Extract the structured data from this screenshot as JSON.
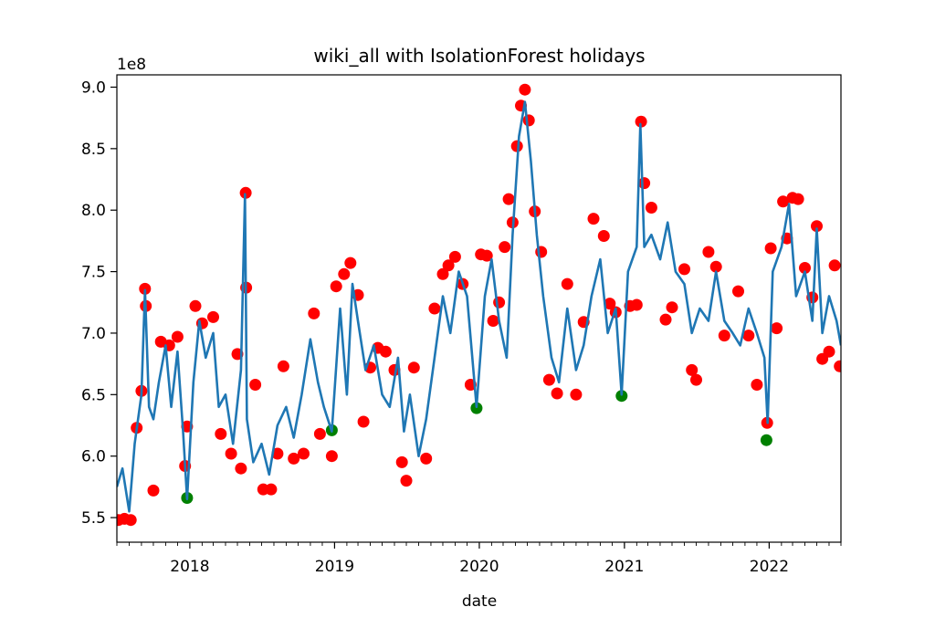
{
  "chart_data": {
    "type": "line",
    "title": "wiki_all with IsolationForest holidays",
    "xlabel": "date",
    "ylabel": "",
    "y_offset_label": "1e8",
    "xlim": [
      "2017-07-01",
      "2022-07-01"
    ],
    "ylim": [
      5.3,
      9.1
    ],
    "x_ticks": [
      {
        "date": "2018-01-01",
        "label": "2018"
      },
      {
        "date": "2019-01-01",
        "label": "2019"
      },
      {
        "date": "2020-01-01",
        "label": "2020"
      },
      {
        "date": "2021-01-01",
        "label": "2021"
      },
      {
        "date": "2022-01-01",
        "label": "2022"
      }
    ],
    "y_ticks": [
      {
        "value": 5.5,
        "label": "5.5"
      },
      {
        "value": 6.0,
        "label": "6.0"
      },
      {
        "value": 6.5,
        "label": "6.5"
      },
      {
        "value": 7.0,
        "label": "7.0"
      },
      {
        "value": 7.5,
        "label": "7.5"
      },
      {
        "value": 8.0,
        "label": "8.0"
      },
      {
        "value": 8.5,
        "label": "8.5"
      },
      {
        "value": 9.0,
        "label": "9.0"
      }
    ],
    "grid": false,
    "legend": "none",
    "colors": {
      "line": "#1f77b4",
      "anomaly": "#ff0000",
      "holiday": "#008000"
    },
    "series": [
      {
        "type": "line",
        "x": [
          "2017-07-01",
          "2017-07-15",
          "2017-08-01",
          "2017-08-15",
          "2017-09-01",
          "2017-09-10",
          "2017-09-20",
          "2017-10-01",
          "2017-10-15",
          "2017-11-01",
          "2017-11-15",
          "2017-12-01",
          "2017-12-15",
          "2017-12-25",
          "2018-01-10",
          "2018-01-25",
          "2018-02-10",
          "2018-03-01",
          "2018-03-15",
          "2018-04-01",
          "2018-04-20",
          "2018-05-10",
          "2018-05-20",
          "2018-05-25",
          "2018-06-10",
          "2018-07-01",
          "2018-07-20",
          "2018-08-10",
          "2018-09-01",
          "2018-09-20",
          "2018-10-10",
          "2018-11-01",
          "2018-11-20",
          "2018-12-05",
          "2018-12-25",
          "2019-01-15",
          "2019-02-01",
          "2019-02-15",
          "2019-03-01",
          "2019-03-20",
          "2019-04-10",
          "2019-05-01",
          "2019-05-20",
          "2019-06-10",
          "2019-06-25",
          "2019-07-10",
          "2019-08-01",
          "2019-08-20",
          "2019-09-10",
          "2019-10-01",
          "2019-10-20",
          "2019-11-10",
          "2019-12-01",
          "2019-12-25",
          "2020-01-15",
          "2020-02-01",
          "2020-02-20",
          "2020-03-10",
          "2020-03-25",
          "2020-04-10",
          "2020-04-25",
          "2020-05-10",
          "2020-05-25",
          "2020-06-10",
          "2020-07-01",
          "2020-07-20",
          "2020-08-10",
          "2020-09-01",
          "2020-09-20",
          "2020-10-10",
          "2020-11-01",
          "2020-11-20",
          "2020-12-10",
          "2020-12-25",
          "2021-01-10",
          "2021-02-01",
          "2021-02-10",
          "2021-02-20",
          "2021-03-10",
          "2021-04-01",
          "2021-04-20",
          "2021-05-10",
          "2021-06-01",
          "2021-06-20",
          "2021-07-10",
          "2021-08-01",
          "2021-08-20",
          "2021-09-10",
          "2021-10-01",
          "2021-10-20",
          "2021-11-10",
          "2021-12-01",
          "2021-12-20",
          "2021-12-28",
          "2022-01-10",
          "2022-02-01",
          "2022-02-20",
          "2022-03-10",
          "2022-04-01",
          "2022-04-20",
          "2022-05-01",
          "2022-05-15",
          "2022-06-01",
          "2022-06-20",
          "2022-07-01"
        ],
        "y": [
          5.75,
          5.9,
          5.55,
          6.1,
          6.5,
          7.35,
          6.4,
          6.3,
          6.6,
          6.9,
          6.4,
          6.85,
          6.2,
          5.65,
          6.6,
          7.1,
          6.8,
          7.0,
          6.4,
          6.5,
          6.1,
          6.7,
          8.13,
          6.3,
          5.95,
          6.1,
          5.85,
          6.25,
          6.4,
          6.15,
          6.5,
          6.95,
          6.6,
          6.4,
          6.2,
          7.2,
          6.5,
          7.4,
          7.1,
          6.7,
          6.9,
          6.5,
          6.4,
          6.8,
          6.2,
          6.5,
          6.0,
          6.3,
          6.8,
          7.3,
          7.0,
          7.5,
          7.3,
          6.4,
          7.3,
          7.6,
          7.1,
          6.8,
          7.8,
          8.6,
          8.88,
          8.4,
          7.8,
          7.3,
          6.8,
          6.6,
          7.2,
          6.7,
          6.9,
          7.3,
          7.6,
          7.0,
          7.2,
          6.5,
          7.5,
          7.7,
          8.7,
          7.7,
          7.8,
          7.6,
          7.9,
          7.5,
          7.4,
          7.0,
          7.2,
          7.1,
          7.5,
          7.1,
          7.0,
          6.9,
          7.2,
          7.0,
          6.8,
          6.27,
          7.5,
          7.7,
          8.05,
          7.3,
          7.5,
          7.1,
          7.85,
          7.0,
          7.3,
          7.1,
          6.9
        ]
      },
      {
        "type": "scatter",
        "name": "",
        "role": "anomaly",
        "x": [
          "2017-07-05",
          "2017-07-20",
          "2017-08-05",
          "2017-08-20",
          "2017-09-01",
          "2017-09-10",
          "2017-09-12",
          "2017-10-01",
          "2017-10-20",
          "2017-11-10",
          "2017-12-01",
          "2017-12-20",
          "2017-12-25",
          "2018-01-15",
          "2018-02-01",
          "2018-03-01",
          "2018-03-20",
          "2018-04-15",
          "2018-05-01",
          "2018-05-10",
          "2018-05-22",
          "2018-05-23",
          "2018-06-15",
          "2018-07-05",
          "2018-07-25",
          "2018-08-10",
          "2018-08-25",
          "2018-09-20",
          "2018-10-15",
          "2018-11-10",
          "2018-11-25",
          "2018-12-25",
          "2019-01-05",
          "2019-01-25",
          "2019-02-10",
          "2019-03-01",
          "2019-03-15",
          "2019-04-01",
          "2019-04-20",
          "2019-05-10",
          "2019-06-01",
          "2019-06-20",
          "2019-07-01",
          "2019-07-20",
          "2019-08-20",
          "2019-09-10",
          "2019-10-01",
          "2019-10-15",
          "2019-11-01",
          "2019-11-20",
          "2019-12-10",
          "2020-01-05",
          "2020-01-20",
          "2020-02-05",
          "2020-02-20",
          "2020-03-05",
          "2020-03-15",
          "2020-03-25",
          "2020-04-05",
          "2020-04-15",
          "2020-04-25",
          "2020-05-05",
          "2020-05-20",
          "2020-06-05",
          "2020-06-25",
          "2020-07-15",
          "2020-08-10",
          "2020-09-01",
          "2020-09-20",
          "2020-10-15",
          "2020-11-10",
          "2020-11-25",
          "2020-12-10",
          "2021-01-15",
          "2021-02-01",
          "2021-02-12",
          "2021-02-20",
          "2021-03-10",
          "2021-04-15",
          "2021-05-01",
          "2021-06-01",
          "2021-06-20",
          "2021-07-01",
          "2021-08-01",
          "2021-08-20",
          "2021-09-10",
          "2021-10-15",
          "2021-11-10",
          "2021-12-01",
          "2021-12-27",
          "2022-01-05",
          "2022-01-20",
          "2022-02-05",
          "2022-02-15",
          "2022-03-01",
          "2022-03-15",
          "2022-04-01",
          "2022-04-20",
          "2022-05-01",
          "2022-05-15",
          "2022-06-01",
          "2022-06-15",
          "2022-06-28"
        ],
        "y": [
          5.48,
          5.49,
          5.48,
          6.23,
          6.53,
          7.36,
          7.22,
          5.72,
          6.93,
          6.9,
          6.97,
          5.92,
          6.24,
          7.22,
          7.08,
          7.13,
          6.18,
          6.02,
          6.83,
          5.9,
          8.14,
          7.37,
          6.58,
          5.73,
          5.73,
          6.02,
          6.73,
          5.98,
          6.02,
          7.16,
          6.18,
          6.0,
          7.38,
          7.48,
          7.57,
          7.31,
          6.28,
          6.72,
          6.88,
          6.85,
          6.7,
          5.95,
          5.8,
          6.72,
          5.98,
          7.2,
          7.48,
          7.55,
          7.62,
          7.4,
          6.58,
          7.64,
          7.63,
          7.1,
          7.25,
          7.7,
          8.09,
          7.9,
          8.52,
          8.85,
          8.98,
          8.73,
          7.99,
          7.66,
          6.62,
          6.51,
          7.4,
          6.5,
          7.09,
          7.93,
          7.79,
          7.24,
          7.17,
          7.22,
          7.23,
          8.72,
          8.22,
          8.02,
          7.11,
          7.21,
          7.52,
          6.7,
          6.62,
          7.66,
          7.54,
          6.98,
          7.34,
          6.98,
          6.58,
          6.27,
          7.69,
          7.04,
          8.07,
          7.77,
          8.1,
          8.09,
          7.53,
          7.29,
          7.87,
          6.79,
          6.85,
          7.55,
          6.73
        ]
      },
      {
        "type": "scatter",
        "name": "",
        "role": "holiday",
        "x": [
          "2017-12-25",
          "2018-12-25",
          "2019-12-25",
          "2020-12-25",
          "2021-12-25"
        ],
        "y": [
          5.66,
          6.21,
          6.39,
          6.49,
          6.13
        ]
      }
    ]
  }
}
